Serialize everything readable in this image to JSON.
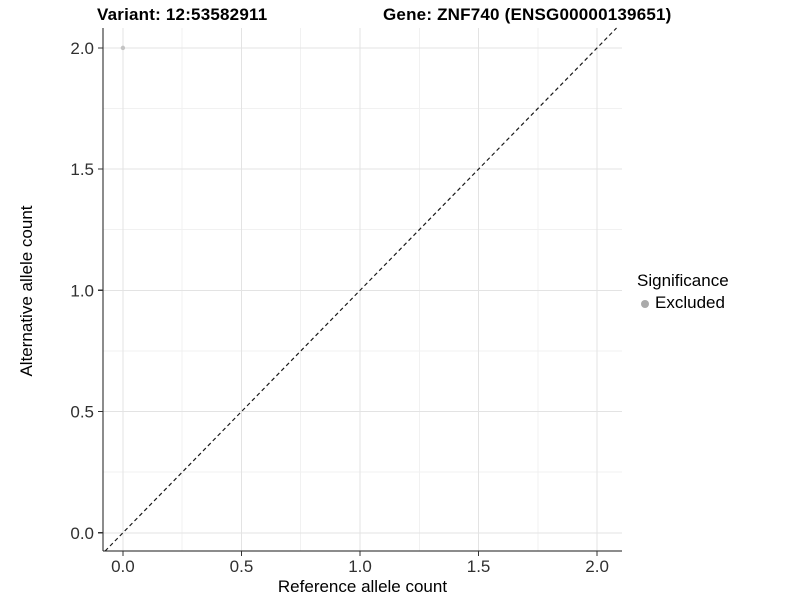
{
  "figure": {
    "title_left": "Variant: 12:53582911",
    "title_right": "Gene: ZNF740 (ENSG00000139651)"
  },
  "chart_data": {
    "type": "scatter",
    "title": "Variant: 12:53582911   Gene: ZNF740 (ENSG00000139651)",
    "xlabel": "Reference allele count",
    "ylabel": "Alternative allele count",
    "xlim": [
      -0.084,
      2.105
    ],
    "ylim": [
      -0.075,
      2.082
    ],
    "x_ticks": [
      0.0,
      0.5,
      1.0,
      1.5,
      2.0
    ],
    "y_ticks": [
      0.0,
      0.5,
      1.0,
      1.5,
      2.0
    ],
    "tick_decimals": 1,
    "minor_grid_step": 0.25,
    "grid": true,
    "points": [
      {
        "x": 0.0,
        "y": 2.0,
        "series": "Excluded"
      }
    ],
    "reference_line": {
      "type": "abline",
      "slope": 1,
      "intercept": 0,
      "linestyle": "dashed"
    },
    "legend": {
      "title": "Significance",
      "position": "right",
      "items": [
        {
          "label": "Excluded",
          "color": "#aaaaaa"
        }
      ]
    },
    "colors": {
      "point": "#c4c4c4",
      "grid_major": "#e3e3e3",
      "grid_minor": "#f1f1f1",
      "axis_line": "#1a1a1a",
      "tick_mark": "#333333",
      "tick_text": "#303030",
      "reference_line": "#1a1a1a",
      "background": "#ffffff"
    }
  }
}
